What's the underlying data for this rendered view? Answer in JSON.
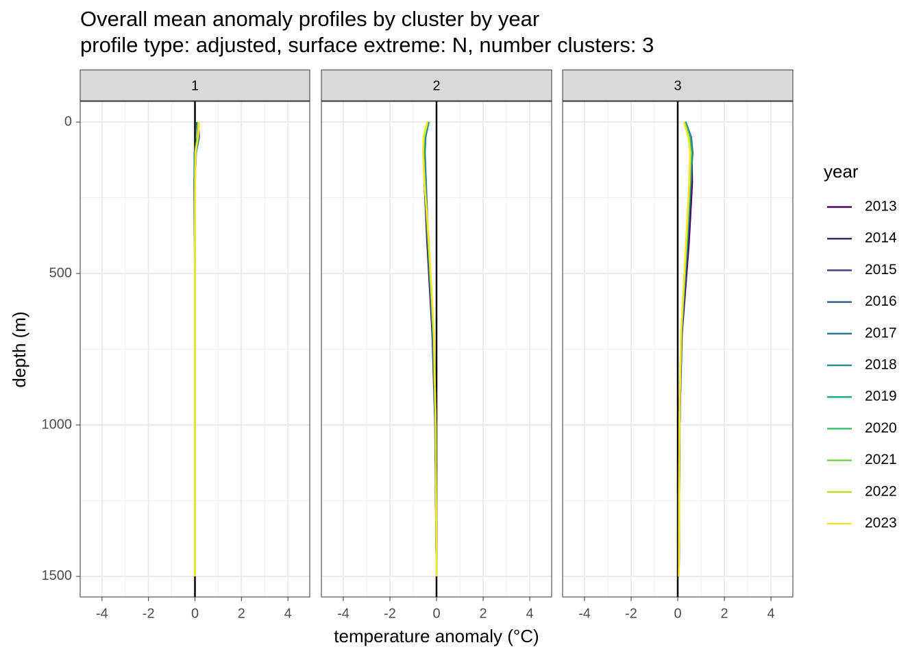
{
  "chart_data": {
    "type": "line",
    "title": "Overall mean anomaly profiles by cluster by year",
    "subtitle": "profile type: adjusted, surface extreme: N, number clusters: 3",
    "x_label": "temperature anomaly (°C)",
    "y_label": "depth (m)",
    "legend_title": "year",
    "xlim": [
      -4.94,
      4.94
    ],
    "xticks": [
      -4,
      -2,
      0,
      2,
      4
    ],
    "minor_xticks": [
      -3,
      -1,
      1,
      3
    ],
    "ylim": [
      1568,
      -68
    ],
    "yticks": [
      0,
      500,
      1000,
      1500
    ],
    "minor_yticks": [
      250,
      750,
      1250
    ],
    "vline": 0,
    "grid": true,
    "y": [
      0,
      50,
      100,
      200,
      400,
      700,
      1000,
      1500
    ],
    "facets": [
      {
        "label": "1",
        "series": [
          {
            "name": "2013",
            "color": "#440154",
            "values": [
              0.08,
              0.1,
              0.02,
              -0.02,
              0.0,
              0.0,
              0.0,
              0.0
            ]
          },
          {
            "name": "2014",
            "color": "#482576",
            "values": [
              0.1,
              0.12,
              0.0,
              -0.03,
              -0.01,
              0.0,
              0.0,
              0.0
            ]
          },
          {
            "name": "2015",
            "color": "#414487",
            "values": [
              0.12,
              0.1,
              -0.02,
              -0.02,
              -0.01,
              0.0,
              0.0,
              0.0
            ]
          },
          {
            "name": "2016",
            "color": "#35608D",
            "values": [
              0.1,
              0.14,
              0.01,
              -0.01,
              0.0,
              0.0,
              0.0,
              0.0
            ]
          },
          {
            "name": "2017",
            "color": "#2A788E",
            "values": [
              0.14,
              0.18,
              0.05,
              0.0,
              0.0,
              0.0,
              0.0,
              0.0
            ]
          },
          {
            "name": "2018",
            "color": "#21908C",
            "values": [
              0.12,
              0.12,
              0.02,
              0.0,
              0.0,
              0.0,
              0.0,
              0.0
            ]
          },
          {
            "name": "2019",
            "color": "#22A884",
            "values": [
              0.1,
              0.1,
              0.0,
              -0.01,
              0.0,
              0.0,
              0.0,
              0.0
            ]
          },
          {
            "name": "2020",
            "color": "#43BF71",
            "values": [
              0.13,
              0.11,
              0.01,
              0.0,
              0.0,
              0.0,
              0.0,
              0.0
            ]
          },
          {
            "name": "2021",
            "color": "#7AD151",
            "values": [
              0.15,
              0.12,
              0.02,
              0.0,
              0.0,
              0.0,
              0.0,
              0.0
            ]
          },
          {
            "name": "2022",
            "color": "#BBDF27",
            "values": [
              0.17,
              0.12,
              0.03,
              0.01,
              0.0,
              0.0,
              0.0,
              0.0
            ]
          },
          {
            "name": "2023",
            "color": "#FDE725",
            "values": [
              0.18,
              0.13,
              0.03,
              0.01,
              0.0,
              0.0,
              0.0,
              0.0
            ]
          }
        ]
      },
      {
        "label": "2",
        "series": [
          {
            "name": "2013",
            "color": "#440154",
            "values": [
              -0.35,
              -0.5,
              -0.55,
              -0.52,
              -0.4,
              -0.18,
              -0.06,
              0.0
            ]
          },
          {
            "name": "2014",
            "color": "#482576",
            "values": [
              -0.36,
              -0.52,
              -0.56,
              -0.52,
              -0.38,
              -0.16,
              -0.05,
              0.0
            ]
          },
          {
            "name": "2015",
            "color": "#414487",
            "values": [
              -0.34,
              -0.5,
              -0.54,
              -0.5,
              -0.37,
              -0.16,
              -0.05,
              0.0
            ]
          },
          {
            "name": "2016",
            "color": "#35608D",
            "values": [
              -0.35,
              -0.48,
              -0.52,
              -0.48,
              -0.36,
              -0.15,
              -0.05,
              0.0
            ]
          },
          {
            "name": "2017",
            "color": "#2A788E",
            "values": [
              -0.33,
              -0.47,
              -0.5,
              -0.45,
              -0.35,
              -0.15,
              -0.05,
              0.0
            ]
          },
          {
            "name": "2018",
            "color": "#21908C",
            "values": [
              -0.34,
              -0.5,
              -0.53,
              -0.5,
              -0.36,
              -0.15,
              -0.05,
              0.0
            ]
          },
          {
            "name": "2019",
            "color": "#22A884",
            "values": [
              -0.36,
              -0.52,
              -0.55,
              -0.5,
              -0.35,
              -0.14,
              -0.04,
              0.0
            ]
          },
          {
            "name": "2020",
            "color": "#43BF71",
            "values": [
              -0.37,
              -0.53,
              -0.56,
              -0.5,
              -0.34,
              -0.13,
              -0.04,
              0.0
            ]
          },
          {
            "name": "2021",
            "color": "#7AD151",
            "values": [
              -0.38,
              -0.54,
              -0.57,
              -0.52,
              -0.34,
              -0.12,
              -0.04,
              0.0
            ]
          },
          {
            "name": "2022",
            "color": "#BBDF27",
            "values": [
              -0.39,
              -0.55,
              -0.58,
              -0.52,
              -0.33,
              -0.12,
              -0.03,
              0.0
            ]
          },
          {
            "name": "2023",
            "color": "#FDE725",
            "values": [
              -0.4,
              -0.56,
              -0.58,
              -0.51,
              -0.32,
              -0.11,
              -0.03,
              0.0
            ]
          }
        ]
      },
      {
        "label": "3",
        "series": [
          {
            "name": "2013",
            "color": "#440154",
            "values": [
              0.3,
              0.5,
              0.6,
              0.62,
              0.48,
              0.18,
              0.08,
              0.05
            ]
          },
          {
            "name": "2014",
            "color": "#482576",
            "values": [
              0.32,
              0.5,
              0.6,
              0.58,
              0.44,
              0.17,
              0.08,
              0.05
            ]
          },
          {
            "name": "2015",
            "color": "#414487",
            "values": [
              0.3,
              0.52,
              0.6,
              0.56,
              0.42,
              0.16,
              0.08,
              0.05
            ]
          },
          {
            "name": "2016",
            "color": "#35608D",
            "values": [
              0.32,
              0.55,
              0.62,
              0.56,
              0.4,
              0.15,
              0.07,
              0.05
            ]
          },
          {
            "name": "2017",
            "color": "#2A788E",
            "values": [
              0.34,
              0.58,
              0.64,
              0.55,
              0.4,
              0.15,
              0.07,
              0.05
            ]
          },
          {
            "name": "2018",
            "color": "#21908C",
            "values": [
              0.32,
              0.55,
              0.6,
              0.54,
              0.4,
              0.16,
              0.07,
              0.05
            ]
          },
          {
            "name": "2019",
            "color": "#22A884",
            "values": [
              0.3,
              0.52,
              0.58,
              0.53,
              0.39,
              0.16,
              0.07,
              0.05
            ]
          },
          {
            "name": "2020",
            "color": "#43BF71",
            "values": [
              0.3,
              0.5,
              0.57,
              0.52,
              0.38,
              0.15,
              0.07,
              0.05
            ]
          },
          {
            "name": "2021",
            "color": "#7AD151",
            "values": [
              0.28,
              0.48,
              0.55,
              0.5,
              0.37,
              0.15,
              0.07,
              0.05
            ]
          },
          {
            "name": "2022",
            "color": "#BBDF27",
            "values": [
              0.27,
              0.46,
              0.54,
              0.5,
              0.36,
              0.14,
              0.07,
              0.05
            ]
          },
          {
            "name": "2023",
            "color": "#FDE725",
            "values": [
              0.26,
              0.45,
              0.53,
              0.49,
              0.35,
              0.14,
              0.07,
              0.05
            ]
          }
        ]
      }
    ]
  }
}
